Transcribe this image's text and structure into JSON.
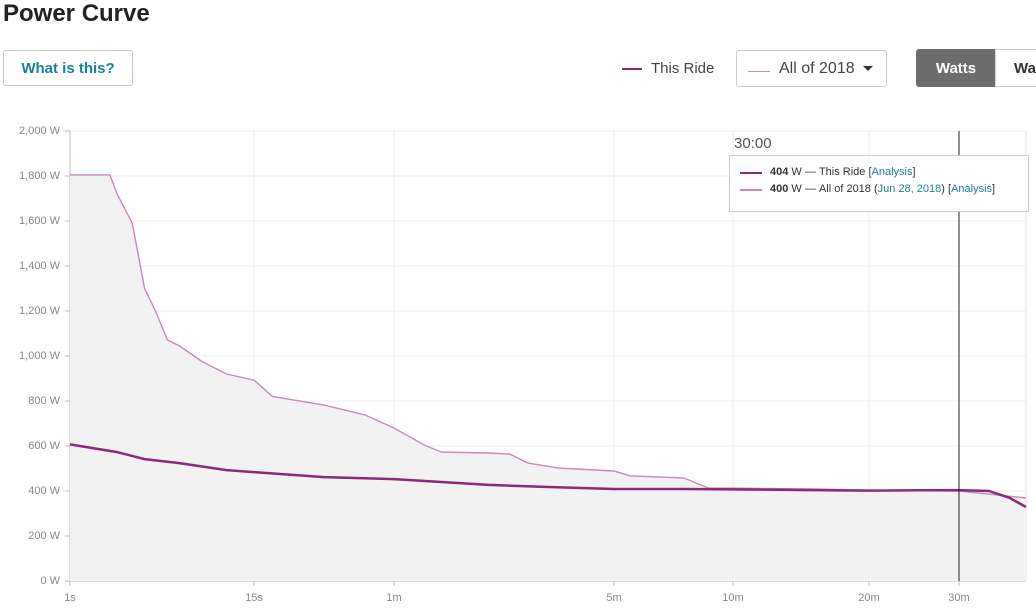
{
  "header": {
    "title": "Power Curve",
    "help_button": "What is this?",
    "legend_this_ride": "This Ride",
    "range_dropdown": "All of 2018",
    "toggle_active": "Watts",
    "toggle_other": "Watts/kg"
  },
  "chart_data": {
    "type": "line",
    "x_scale": "log",
    "xlim": [
      1,
      2280
    ],
    "xticks": [
      {
        "value": 1,
        "label": "1s"
      },
      {
        "value": 15,
        "label": "15s"
      },
      {
        "value": 60,
        "label": "1m"
      },
      {
        "value": 300,
        "label": "5m"
      },
      {
        "value": 600,
        "label": "10m"
      },
      {
        "value": 1200,
        "label": "20m"
      },
      {
        "value": 1800,
        "label": "30m"
      }
    ],
    "ylim": [
      0,
      2000
    ],
    "yticks": [
      {
        "value": 0,
        "label": "0 W"
      },
      {
        "value": 200,
        "label": "200 W"
      },
      {
        "value": 400,
        "label": "400 W"
      },
      {
        "value": 600,
        "label": "600 W"
      },
      {
        "value": 800,
        "label": "800 W"
      },
      {
        "value": 1000,
        "label": "1,000 W"
      },
      {
        "value": 1200,
        "label": "1,200 W"
      },
      {
        "value": 1400,
        "label": "1,400 W"
      },
      {
        "value": 1600,
        "label": "1,600 W"
      },
      {
        "value": 1800,
        "label": "1,800 W"
      },
      {
        "value": 2000,
        "label": "2,000 W"
      }
    ],
    "grid": true,
    "series": [
      {
        "name": "All of 2018",
        "color": "#c48ab9",
        "area_color": "#f2f2f2",
        "x": [
          1,
          1.8,
          2,
          2.5,
          3,
          3.5,
          4.2,
          5,
          7,
          10,
          15,
          18,
          30,
          45,
          60,
          75,
          85,
          120,
          140,
          160,
          200,
          300,
          330,
          450,
          520,
          600,
          900,
          1200,
          1800,
          2280
        ],
        "values": [
          1805,
          1805,
          1720,
          1590,
          1300,
          1204,
          1071,
          1045,
          975,
          920,
          893,
          820,
          782,
          738,
          680,
          604,
          573,
          569,
          564,
          524,
          502,
          489,
          467,
          458,
          413,
          413,
          409,
          404,
          400,
          369
        ]
      },
      {
        "name": "This Ride",
        "color": "#8b2a7a",
        "x": [
          1,
          2,
          3,
          5,
          10,
          15,
          30,
          60,
          120,
          180,
          300,
          450,
          600,
          900,
          1200,
          1500,
          1800,
          2000,
          2150,
          2280
        ],
        "values": [
          607,
          573,
          542,
          524,
          493,
          484,
          462,
          453,
          427,
          418,
          409,
          409,
          407,
          404,
          402,
          403,
          404,
          400,
          370,
          329
        ]
      }
    ],
    "cursor": {
      "x": 1800,
      "label": "30:00"
    },
    "tooltip": {
      "unit": "W",
      "separator": "—",
      "link": "Analysis",
      "rows": [
        {
          "value": 404,
          "series": "This Ride"
        },
        {
          "value": 400,
          "series": "All of 2018",
          "date": "Jun 28, 2018"
        }
      ]
    }
  }
}
